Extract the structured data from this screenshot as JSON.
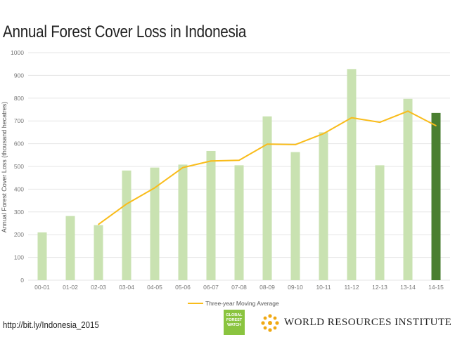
{
  "title": "Annual Forest Cover Loss in Indonesia",
  "source_link": "http://bit.ly/Indonesia_2015",
  "logos": {
    "gfw": [
      "GLOBAL",
      "FOREST",
      "WATCH"
    ],
    "wri": "WORLD RESOURCES INSTITUTE"
  },
  "colors": {
    "bar": "#c9e2b1",
    "bar_highlight": "#4a7f30",
    "line": "#f9bc1a",
    "grid": "#e6e6e6"
  },
  "chart_data": {
    "type": "bar",
    "ylabel": "Annual Forest Cover Loss (thousand hecatres)",
    "ylim": [
      0,
      1000
    ],
    "yticks": [
      0,
      100,
      200,
      300,
      400,
      500,
      600,
      700,
      800,
      900,
      1000
    ],
    "grid": true,
    "legend_position": "bottom",
    "categories": [
      "00-01",
      "01-02",
      "02-03",
      "03-04",
      "04-05",
      "05-06",
      "06-07",
      "07-08",
      "08-09",
      "09-10",
      "10-11",
      "11-12",
      "12-13",
      "13-14",
      "14-15"
    ],
    "series": [
      {
        "type": "bar",
        "values": [
          210,
          282,
          242,
          482,
          495,
          508,
          568,
          505,
          720,
          563,
          650,
          928,
          505,
          797,
          735
        ],
        "highlight_index": 14
      },
      {
        "name": "Three-year Moving Average",
        "type": "line",
        "values": [
          null,
          null,
          245,
          335,
          406,
          495,
          524,
          527,
          598,
          596,
          644,
          714,
          694,
          743,
          679
        ]
      }
    ]
  }
}
